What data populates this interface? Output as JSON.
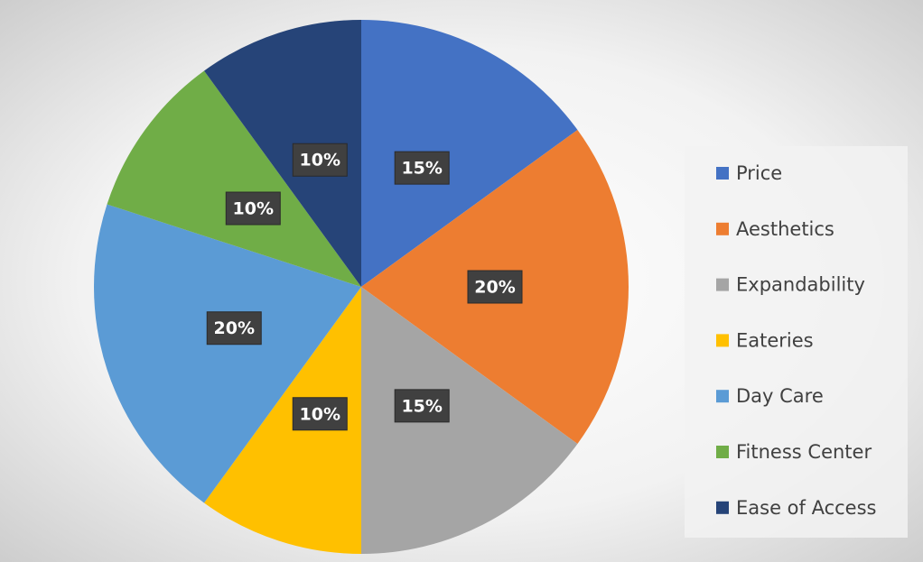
{
  "chart_data": {
    "type": "pie",
    "categories": [
      "Price",
      "Aesthetics",
      "Expandability",
      "Eateries",
      "Day Care",
      "Fitness Center",
      "Ease of Access"
    ],
    "values": [
      15,
      20,
      15,
      10,
      20,
      10,
      10
    ],
    "value_labels": [
      "15%",
      "20%",
      "15%",
      "10%",
      "20%",
      "10%",
      "10%"
    ],
    "colors": [
      "#4472c4",
      "#ed7d31",
      "#a5a5a5",
      "#ffc000",
      "#5b9bd5",
      "#70ad47",
      "#264478"
    ],
    "legend": "right"
  }
}
